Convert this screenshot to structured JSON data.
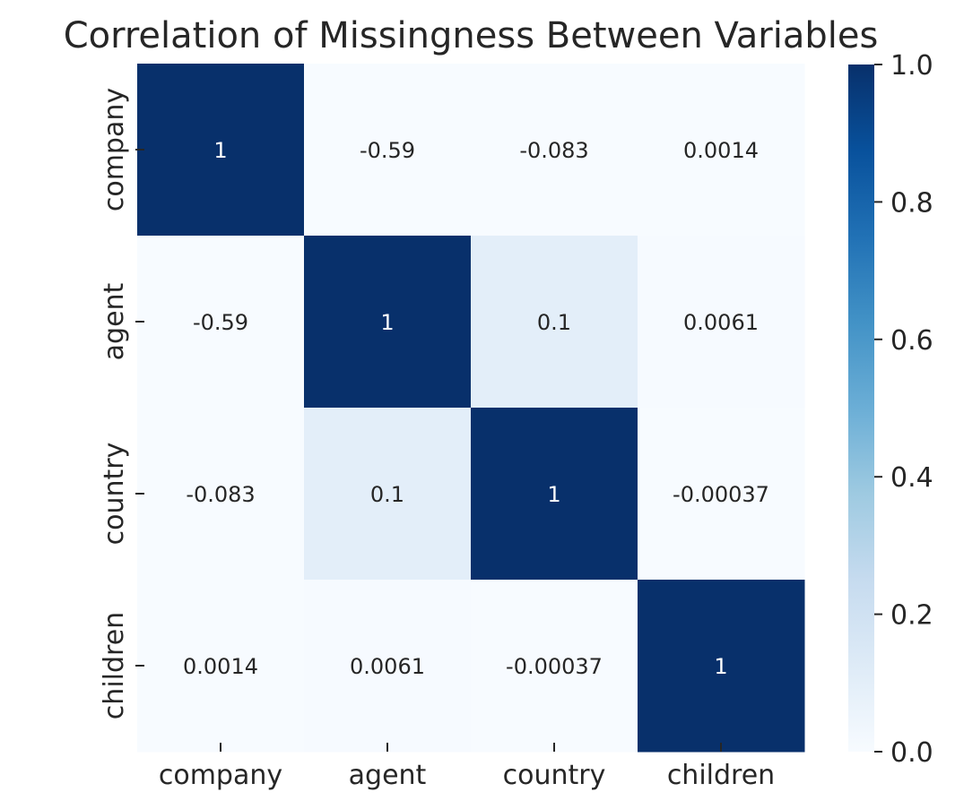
{
  "chart_data": {
    "type": "heatmap",
    "title": "Correlation of Missingness Between Variables",
    "xlabel": "",
    "ylabel": "",
    "x_categories": [
      "company",
      "agent",
      "country",
      "children"
    ],
    "y_categories": [
      "company",
      "agent",
      "country",
      "children"
    ],
    "values": [
      [
        1,
        -0.59,
        -0.083,
        0.0014
      ],
      [
        -0.59,
        1,
        0.1,
        0.0061
      ],
      [
        -0.083,
        0.1,
        1,
        -0.00037
      ],
      [
        0.0014,
        0.0061,
        -0.00037,
        1
      ]
    ],
    "annotations": [
      [
        "1",
        "-0.59",
        "-0.083",
        "0.0014"
      ],
      [
        "-0.59",
        "1",
        "0.1",
        "0.0061"
      ],
      [
        "-0.083",
        "0.1",
        "1",
        "-0.00037"
      ],
      [
        "0.0014",
        "0.0061",
        "-0.00037",
        "1"
      ]
    ],
    "colormap": "Blues",
    "color_range": [
      0.0,
      1.0
    ],
    "colorbar": {
      "ticks": [
        0.0,
        0.2,
        0.4,
        0.6,
        0.8,
        1.0
      ],
      "tick_labels": [
        "0.0",
        "0.2",
        "0.4",
        "0.6",
        "0.8",
        "1.0"
      ],
      "placement": "right"
    },
    "grid": false
  }
}
